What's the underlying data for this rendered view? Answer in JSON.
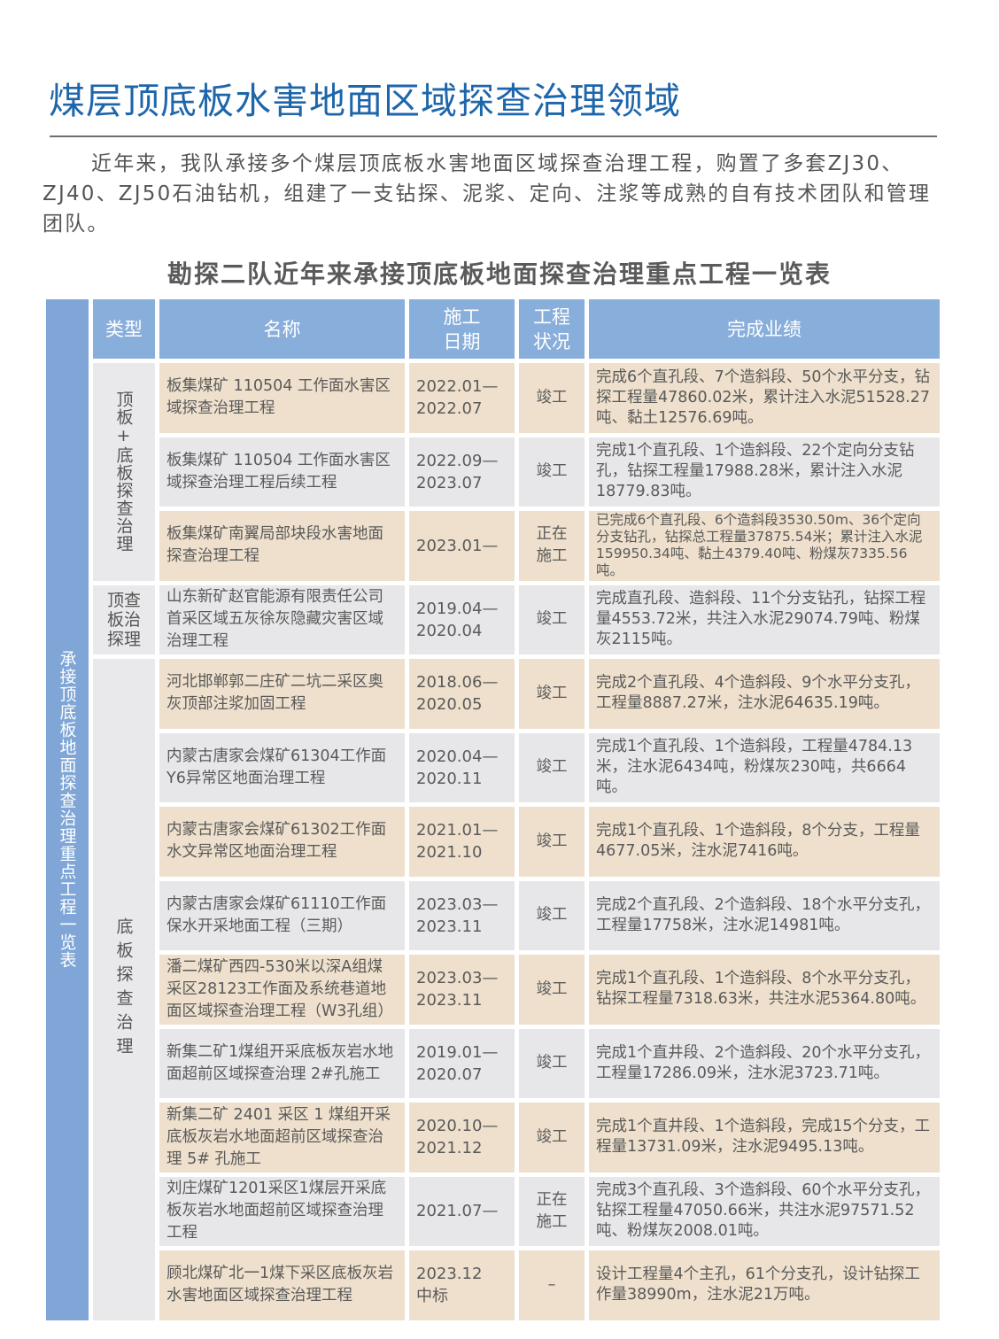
{
  "title": "煤层顶底板水害地面区域探查治理领域",
  "intro": "近年来，我队承接多个煤层顶底板水害地面区域探查治理工程，购置了多套ZJ30、ZJ40、ZJ50石油钻机，组建了一支钻探、泥浆、定向、注浆等成熟的自有技术团队和管理团队。",
  "table": {
    "title": "勘探二队近年来承接顶底板地面探查治理重点工程一览表",
    "side_label": "承接顶底板地面探查治理重点工程一览表",
    "headers": {
      "type": "类型",
      "name": "名称",
      "date": "施工\n日期",
      "status": "工程\n状况",
      "result": "完成业绩"
    },
    "types": [
      "顶板+底板探查治理",
      "顶查\n板治\n探理",
      "底板探查治理"
    ],
    "colors": {
      "header": "#88aedb",
      "band": "#7fa6d6",
      "beige": "#eee0cc",
      "grey": "#e7e7e9",
      "title": "#1d66ab"
    },
    "rows": [
      {
        "name": "板集煤矿 110504 工作面水害区域探查治理工程",
        "date": "2022.01—\n2022.07",
        "status": "竣工",
        "result": "完成6个直孔段、7个造斜段、50个水平分支，钻探工程量47860.02米，累计注入水泥51528.27吨、黏土12576.69吨。"
      },
      {
        "name": "板集煤矿 110504 工作面水害区域探查治理工程后续工程",
        "date": "2022.09—\n2023.07",
        "status": "竣工",
        "result": "完成1个直孔段、1个造斜段、22个定向分支钻孔，钻探工程量17988.28米，累计注入水泥18779.83吨。"
      },
      {
        "name": "板集煤矿南翼局部块段水害地面探查治理工程",
        "date": "2023.01—",
        "status": "正在\n施工",
        "result": "已完成6个直孔段、6个造斜段3530.50m、36个定向分支钻孔，钻探总工程量37875.54米；累计注入水泥159950.34吨、黏土4379.40吨、粉煤灰7335.56吨。"
      },
      {
        "name": "山东新矿赵官能源有限责任公司首采区域五灰徐灰隐藏灾害区域治理工程",
        "date": "2019.04—\n2020.04",
        "status": "竣工",
        "result": "完成直孔段、造斜段、11个分支钻孔，钻探工程量4553.72米，共注入水泥29074.79吨、粉煤灰2115吨。"
      },
      {
        "name": "河北邯郸郭二庄矿二坑二采区奥灰顶部注浆加固工程",
        "date": "2018.06—\n2020.05",
        "status": "竣工",
        "result": "完成2个直孔段、4个造斜段、9个水平分支孔，工程量8887.27米，注水泥64635.19吨。"
      },
      {
        "name": "内蒙古唐家会煤矿61304工作面Y6异常区地面治理工程",
        "date": "2020.04—\n2020.11",
        "status": "竣工",
        "result": "完成1个直孔段、1个造斜段，工程量4784.13米，注水泥6434吨，粉煤灰230吨，共6664吨。"
      },
      {
        "name": "内蒙古唐家会煤矿61302工作面水文异常区地面治理工程",
        "date": "2021.01—\n2021.10",
        "status": "竣工",
        "result": "完成1个直孔段、1个造斜段，8个分支，工程量4677.05米，注水泥7416吨。"
      },
      {
        "name": "内蒙古唐家会煤矿61110工作面保水开采地面工程（三期）",
        "date": "2023.03—\n2023.11",
        "status": "竣工",
        "result": "完成2个直孔段、2个造斜段、18个水平分支孔，工程量17758米，注水泥14981吨。"
      },
      {
        "name": "潘二煤矿西四-530米以深A组煤采区28123工作面及系统巷道地面区域探查治理工程（W3孔组）",
        "date": "2023.03—\n2023.11",
        "status": "竣工",
        "result": "完成1个直孔段、1个造斜段、8个水平分支孔，钻探工程量7318.63米，共注水泥5364.80吨。"
      },
      {
        "name": "新集二矿1煤组开采底板灰岩水地面超前区域探查治理 2#孔施工",
        "date": "2019.01—\n2020.07",
        "status": "竣工",
        "result": "完成1个直井段、2个造斜段、20个水平分支孔，工程量17286.09米，注水泥3723.71吨。"
      },
      {
        "name": "新集二矿 2401 采区 1 煤组开采底板灰岩水地面超前区域探查治理 5# 孔施工",
        "date": "2020.10—\n2021.12",
        "status": "竣工",
        "result": "完成1个直井段、1个造斜段，完成15个分支，工程量13731.09米，注水泥9495.13吨。"
      },
      {
        "name": "刘庄煤矿1201采区1煤层开采底板灰岩水地面超前区域探查治理工程",
        "date": "2021.07—",
        "status": "正在\n施工",
        "result": "完成3个直孔段、3个造斜段、60个水平分支孔，钻探工程量47050.66米，共注水泥97571.52吨、粉煤灰2008.01吨。"
      },
      {
        "name": "顾北煤矿北一1煤下采区底板灰岩水害地面区域探查治理工程",
        "date": "2023.12\n中标",
        "status": "–",
        "result": "设计工程量4个主孔，61个分支孔，设计钻探工作量38990m，注水泥21万吨。"
      }
    ]
  }
}
